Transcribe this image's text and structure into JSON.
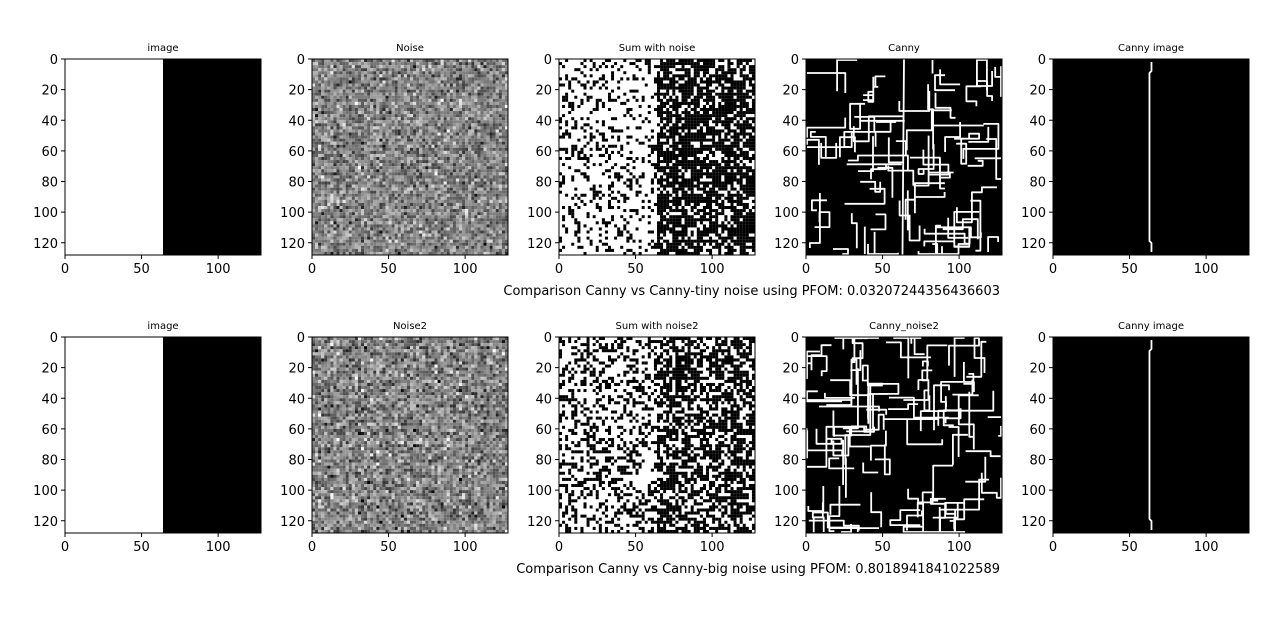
{
  "chart_data": [
    {
      "type": "heatmap",
      "panel": "step-image-top",
      "title": "image",
      "content": "step",
      "color": "gray",
      "xlim": [
        0,
        128
      ],
      "ylim": [
        128,
        0
      ],
      "xticks": [
        "0",
        "50",
        "100"
      ],
      "yticks": [
        "0",
        "20",
        "40",
        "60",
        "80",
        "100",
        "120"
      ],
      "step_edge_column": 64
    },
    {
      "type": "heatmap",
      "panel": "noise-top",
      "title": "Noise",
      "content": "noise",
      "noise_level": "small",
      "color": "gray",
      "xlim": [
        0,
        128
      ],
      "ylim": [
        128,
        0
      ],
      "xticks": [
        "0",
        "50",
        "100"
      ],
      "yticks": [
        "0",
        "20",
        "40",
        "60",
        "80",
        "100",
        "120"
      ]
    },
    {
      "type": "heatmap",
      "panel": "sum-top",
      "title": "Sum with noise",
      "content": "step-plus-noise",
      "noise_level": "small",
      "color": "gray",
      "xlim": [
        0,
        128
      ],
      "ylim": [
        128,
        0
      ],
      "xticks": [
        "0",
        "50",
        "100"
      ],
      "yticks": [
        "0",
        "20",
        "40",
        "60",
        "80",
        "100",
        "120"
      ]
    },
    {
      "type": "heatmap",
      "panel": "canny-top",
      "title": "Canny",
      "content": "noisy-edges",
      "color": "binary",
      "xlim": [
        0,
        128
      ],
      "ylim": [
        128,
        0
      ],
      "xticks": [
        "0",
        "50",
        "100"
      ],
      "yticks": [
        "0",
        "20",
        "40",
        "60",
        "80",
        "100",
        "120"
      ]
    },
    {
      "type": "heatmap",
      "panel": "canny-image-top",
      "title": "Canny image",
      "content": "single-edge",
      "color": "binary",
      "xlim": [
        0,
        128
      ],
      "ylim": [
        128,
        0
      ],
      "xticks": [
        "0",
        "50",
        "100"
      ],
      "yticks": [
        "0",
        "20",
        "40",
        "60",
        "80",
        "100",
        "120"
      ],
      "edge_column": 63
    },
    {
      "type": "heatmap",
      "panel": "step-image-bottom",
      "title": "image",
      "content": "step",
      "color": "gray",
      "xlim": [
        0,
        128
      ],
      "ylim": [
        128,
        0
      ],
      "xticks": [
        "0",
        "50",
        "100"
      ],
      "yticks": [
        "0",
        "20",
        "40",
        "60",
        "80",
        "100",
        "120"
      ],
      "step_edge_column": 64
    },
    {
      "type": "heatmap",
      "panel": "noise-bottom",
      "title": "Noise2",
      "content": "noise",
      "noise_level": "large",
      "color": "gray",
      "xlim": [
        0,
        128
      ],
      "ylim": [
        128,
        0
      ],
      "xticks": [
        "0",
        "50",
        "100"
      ],
      "yticks": [
        "0",
        "20",
        "40",
        "60",
        "80",
        "100",
        "120"
      ]
    },
    {
      "type": "heatmap",
      "panel": "sum-bottom",
      "title": "Sum with noise2",
      "content": "step-plus-noise",
      "noise_level": "large",
      "color": "gray",
      "xlim": [
        0,
        128
      ],
      "ylim": [
        128,
        0
      ],
      "xticks": [
        "0",
        "50",
        "100"
      ],
      "yticks": [
        "0",
        "20",
        "40",
        "60",
        "80",
        "100",
        "120"
      ]
    },
    {
      "type": "heatmap",
      "panel": "canny-bottom",
      "title": "Canny_noise2",
      "content": "noisy-edges",
      "color": "binary",
      "xlim": [
        0,
        128
      ],
      "ylim": [
        128,
        0
      ],
      "xticks": [
        "0",
        "50",
        "100"
      ],
      "yticks": [
        "0",
        "20",
        "40",
        "60",
        "80",
        "100",
        "120"
      ]
    },
    {
      "type": "heatmap",
      "panel": "canny-image-bottom",
      "title": "Canny image",
      "content": "single-edge",
      "color": "binary",
      "xlim": [
        0,
        128
      ],
      "ylim": [
        128,
        0
      ],
      "xticks": [
        "0",
        "50",
        "100"
      ],
      "yticks": [
        "0",
        "20",
        "40",
        "60",
        "80",
        "100",
        "120"
      ],
      "edge_column": 63
    }
  ],
  "captions": {
    "row1": "Comparison Canny vs Canny-tiny noise using PFOM: 0.03207244356436603",
    "row2": "Comparison Canny vs Canny-big noise using PFOM: 0.8018941841022589"
  }
}
